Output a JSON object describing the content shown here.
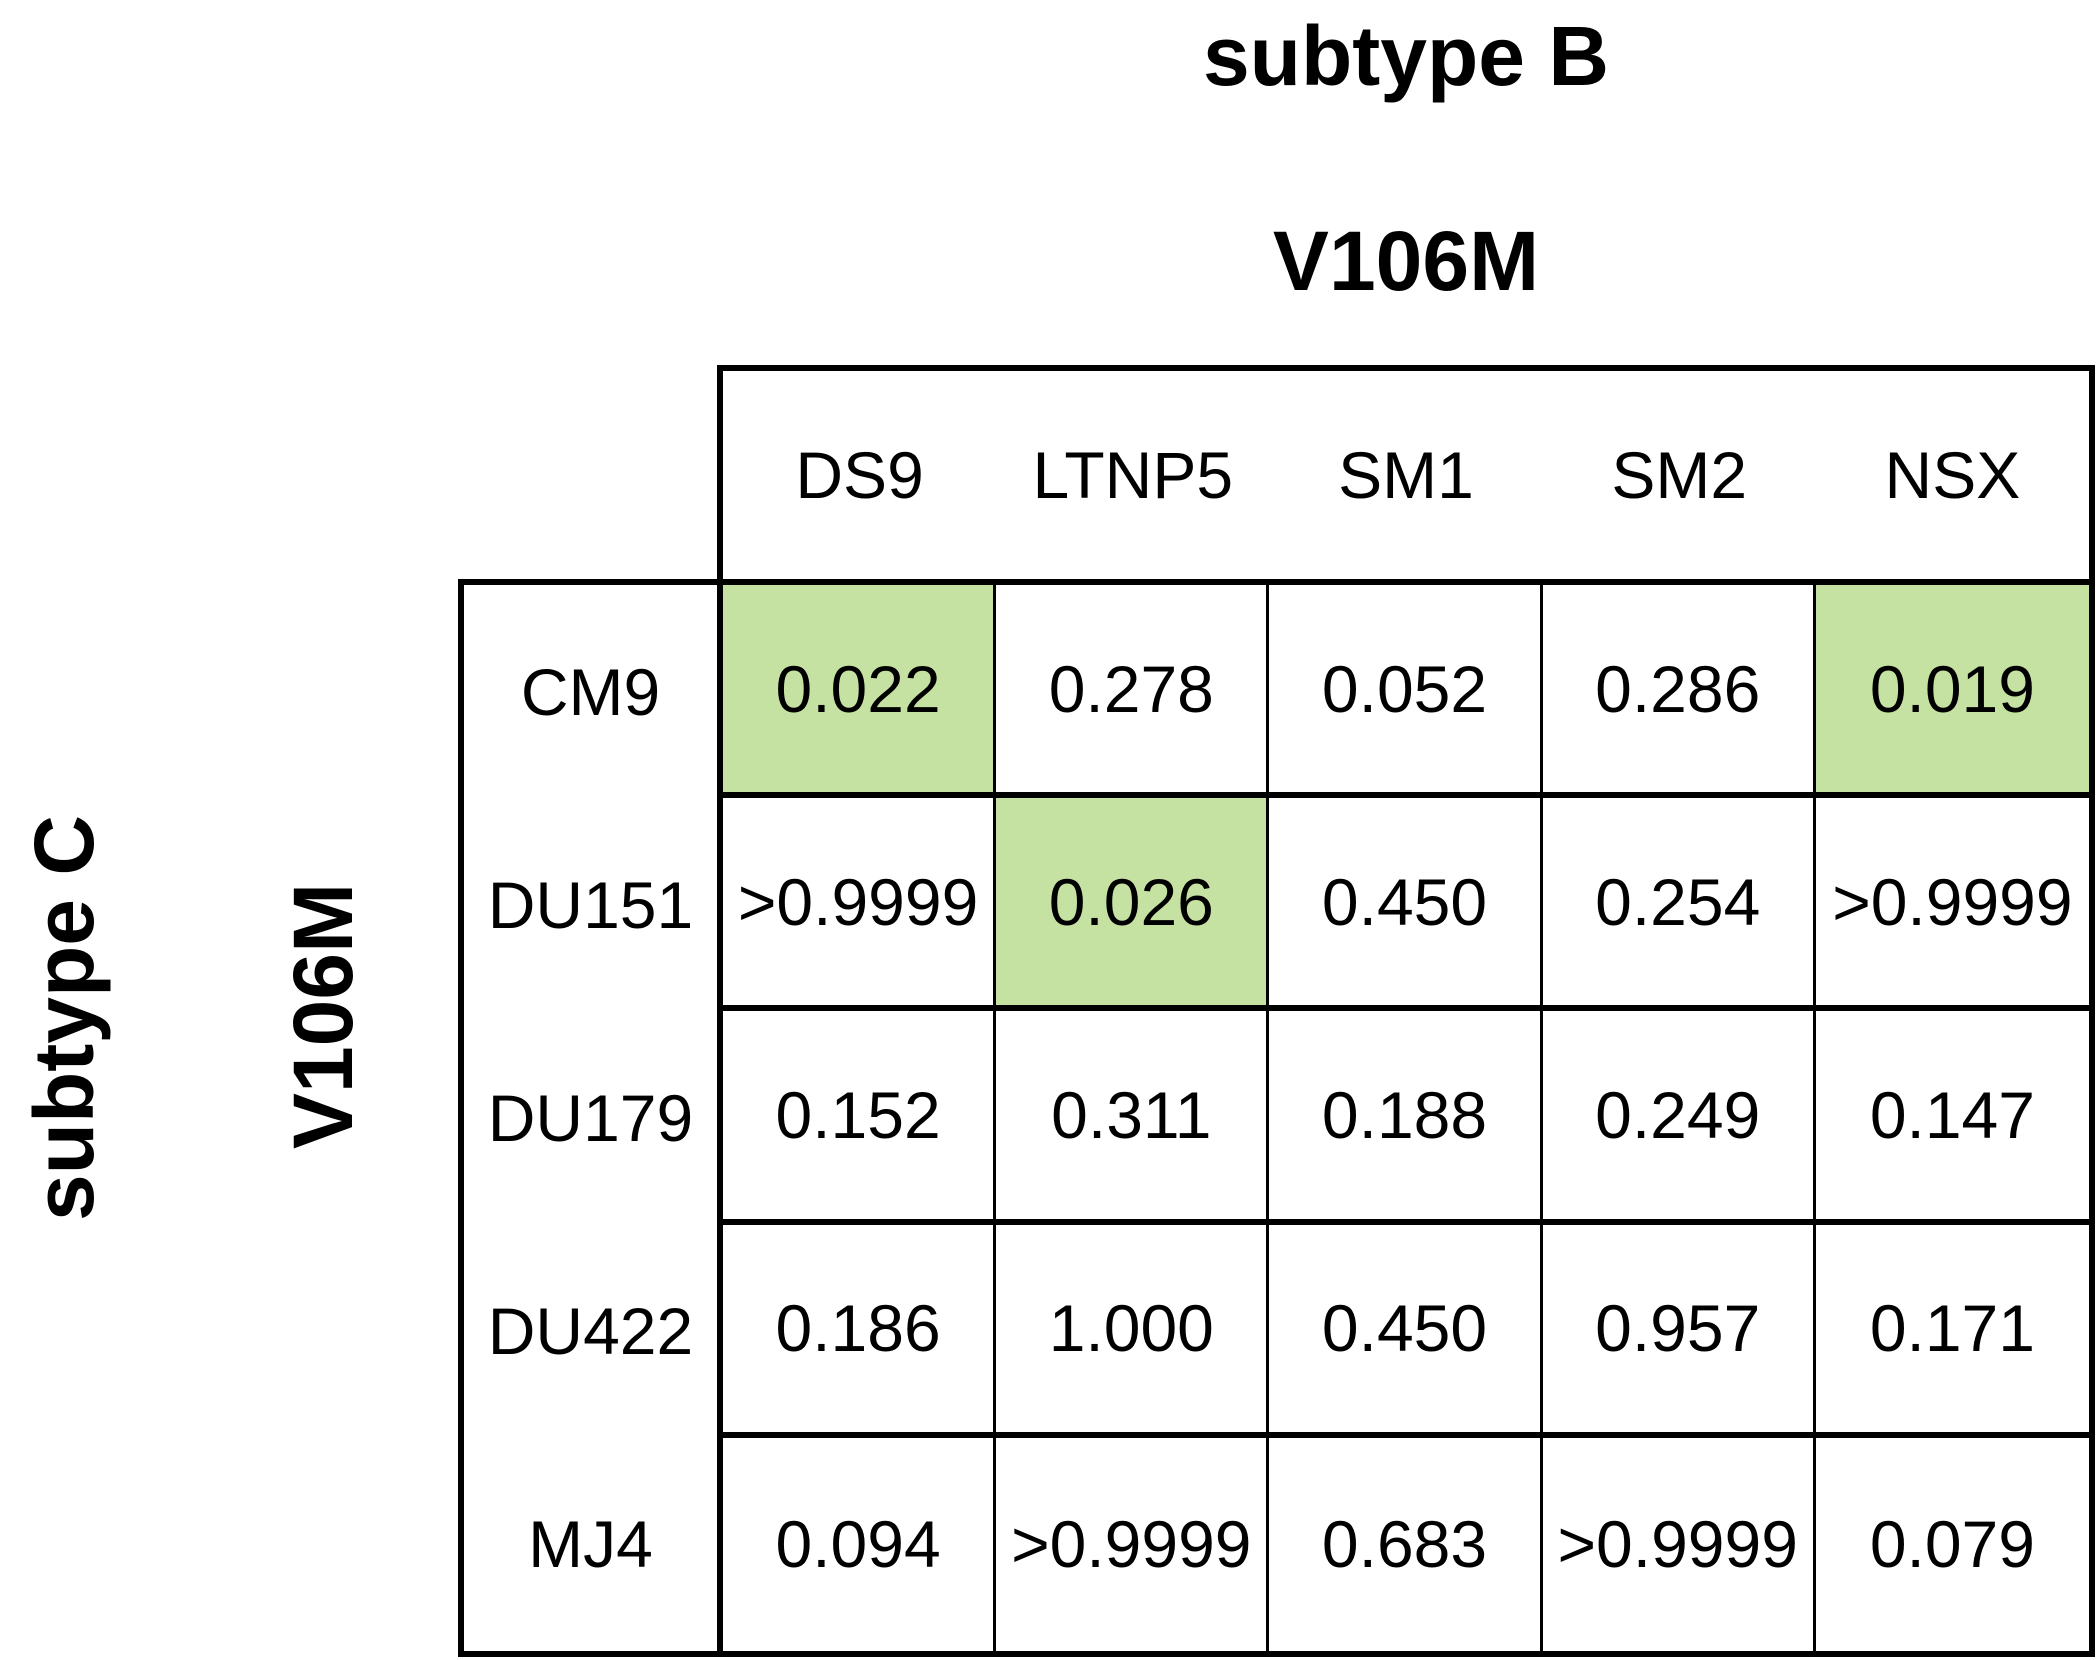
{
  "figure": {
    "top_axis": {
      "group": "subtype B",
      "mutation": "V106M"
    },
    "left_axis": {
      "group": "subtype C",
      "mutation": "V106M"
    }
  },
  "colors": {
    "highlight_green": "#c6e2a2",
    "border": "#000000",
    "background": "#ffffff",
    "text": "#000000"
  },
  "chart_data": {
    "type": "table",
    "column_axis": {
      "group": "subtype B",
      "mutation": "V106M"
    },
    "row_axis": {
      "group": "subtype C",
      "mutation": "V106M"
    },
    "columns": [
      "DS9",
      "LTNP5",
      "SM1",
      "SM2",
      "NSX"
    ],
    "rows": [
      {
        "label": "CM9",
        "values": [
          "0.022",
          "0.278",
          "0.052",
          "0.286",
          "0.019"
        ],
        "highlighted": [
          true,
          false,
          false,
          false,
          true
        ]
      },
      {
        "label": "DU151",
        "values": [
          ">0.9999",
          "0.026",
          "0.450",
          "0.254",
          ">0.9999"
        ],
        "highlighted": [
          false,
          true,
          false,
          false,
          false
        ]
      },
      {
        "label": "DU179",
        "values": [
          "0.152",
          "0.311",
          "0.188",
          "0.249",
          "0.147"
        ],
        "highlighted": [
          false,
          false,
          false,
          false,
          false
        ]
      },
      {
        "label": "DU422",
        "values": [
          "0.186",
          "1.000",
          "0.450",
          "0.957",
          "0.171"
        ],
        "highlighted": [
          false,
          false,
          false,
          false,
          false
        ]
      },
      {
        "label": "MJ4",
        "values": [
          "0.094",
          ">0.9999",
          "0.683",
          ">0.9999",
          "0.079"
        ],
        "highlighted": [
          false,
          false,
          false,
          false,
          false
        ]
      }
    ]
  }
}
